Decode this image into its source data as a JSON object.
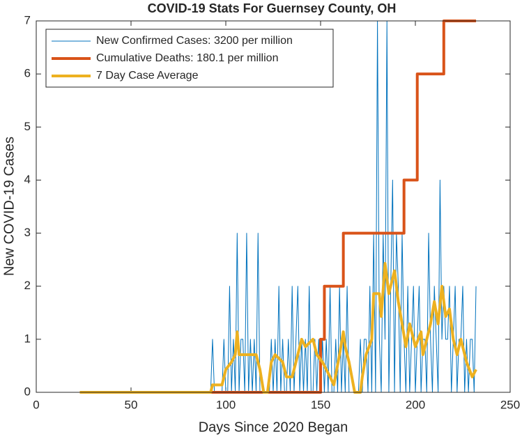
{
  "chart_data": {
    "type": "line",
    "title": "COVID-19 Stats For Guernsey County, OH",
    "x_label": "Days Since 2020 Began",
    "y_label": "New COVID-19 Cases",
    "xlim": [
      0,
      250
    ],
    "xticks": [
      0,
      50,
      100,
      150,
      200,
      250
    ],
    "ylim": [
      0,
      7
    ],
    "yticks": [
      0,
      1,
      2,
      3,
      4,
      5,
      6,
      7
    ],
    "grid": false,
    "legend": "northwest",
    "series": [
      {
        "name": "New Confirmed Cases: 3200 per million",
        "color": "#0072bd",
        "width": 1,
        "x": [
          23,
          92,
          93,
          94,
          95,
          96,
          97,
          98,
          99,
          100,
          101,
          102,
          103,
          104,
          105,
          106,
          107,
          108,
          109,
          110,
          111,
          112,
          113,
          114,
          115,
          116,
          117,
          118,
          119,
          120,
          121,
          122,
          123,
          124,
          125,
          126,
          127,
          128,
          129,
          130,
          131,
          132,
          133,
          134,
          135,
          136,
          137,
          138,
          139,
          140,
          141,
          142,
          143,
          144,
          145,
          146,
          147,
          148,
          149,
          150,
          151,
          152,
          153,
          154,
          155,
          156,
          157,
          158,
          159,
          160,
          161,
          162,
          163,
          164,
          165,
          166,
          167,
          168,
          169,
          170,
          171,
          172,
          173,
          174,
          175,
          176,
          177,
          178,
          179,
          180,
          181,
          182,
          183,
          184,
          185,
          186,
          187,
          188,
          189,
          190,
          191,
          192,
          193,
          194,
          195,
          196,
          197,
          198,
          199,
          200,
          201,
          202,
          203,
          204,
          205,
          206,
          207,
          208,
          209,
          210,
          211,
          212,
          213,
          214,
          215,
          216,
          217,
          218,
          219,
          220,
          221,
          222,
          223,
          224,
          225,
          226,
          227,
          228,
          229,
          230,
          231,
          232
        ],
        "values": [
          0,
          0,
          1,
          0,
          0,
          0,
          0,
          0,
          1,
          0,
          0,
          2,
          0,
          1,
          0,
          3,
          0,
          1,
          1,
          0,
          3,
          0,
          1,
          0,
          1,
          0,
          3,
          0,
          0,
          0,
          0,
          0,
          0,
          1,
          0,
          1,
          0,
          2,
          0,
          1,
          0,
          0,
          1,
          0,
          2,
          0,
          1,
          2,
          0,
          1,
          0,
          1,
          0,
          2,
          0,
          0,
          1,
          0,
          1,
          0,
          1,
          0,
          1,
          0,
          2,
          0,
          0,
          1,
          0,
          2,
          0,
          1,
          0,
          2,
          0,
          0,
          0,
          0,
          0,
          0,
          1,
          0,
          1,
          1,
          0,
          2,
          0,
          3,
          0,
          7,
          1,
          0,
          3,
          1,
          7,
          0,
          2,
          4,
          0,
          3,
          2,
          0,
          3,
          1,
          0,
          2,
          0,
          1,
          2,
          0,
          1,
          2,
          0,
          1,
          1,
          0,
          3,
          1,
          0,
          2,
          1,
          0,
          4,
          1,
          2,
          1,
          1,
          2,
          0,
          1,
          2,
          0,
          1,
          1,
          2,
          0,
          1,
          0,
          1,
          1,
          0,
          2
        ]
      },
      {
        "name": "Cumulative Deaths: 180.1 per million",
        "color": "#d95319",
        "width": 4,
        "x": [
          23,
          150,
          150,
          152,
          152,
          162,
          162,
          194,
          194,
          201,
          201,
          215,
          215,
          232
        ],
        "values": [
          0,
          0,
          1,
          1,
          2,
          2,
          3,
          3,
          4,
          4,
          6,
          6,
          7,
          7
        ]
      },
      {
        "name": "7 Day Case Average",
        "color": "#edb120",
        "width": 4,
        "x": [
          23,
          92,
          93,
          98,
          100,
          103,
          105,
          106,
          107,
          110,
          116,
          118,
          120,
          122,
          124,
          126,
          130,
          132,
          135,
          137,
          140,
          142,
          146,
          148,
          151,
          153,
          155,
          157,
          160,
          162,
          163,
          165,
          168,
          171,
          172,
          174,
          177,
          178,
          181,
          182,
          184,
          186,
          189,
          191,
          193,
          195,
          197,
          200,
          203,
          204,
          208,
          210,
          212,
          214,
          216,
          218,
          220,
          222,
          224,
          227,
          230,
          232
        ],
        "values": [
          0,
          0,
          0.14,
          0.14,
          0.43,
          0.57,
          0.71,
          1.14,
          0.71,
          0.71,
          0.71,
          0.43,
          0,
          0,
          0.57,
          0.71,
          0.57,
          0.29,
          0.29,
          0.57,
          1,
          0.86,
          1,
          0.71,
          0.57,
          0.43,
          0.29,
          0.14,
          0.71,
          1.14,
          0.86,
          0.57,
          0,
          0,
          0.29,
          0.71,
          1,
          1.86,
          1.86,
          1.43,
          2.43,
          1.86,
          2.29,
          1.71,
          1.29,
          0.86,
          1.29,
          0.86,
          1.14,
          0.71,
          1.29,
          1.71,
          1.29,
          2,
          1.43,
          1.57,
          1,
          0.71,
          1,
          0.57,
          0.29,
          0.43
        ]
      }
    ]
  }
}
